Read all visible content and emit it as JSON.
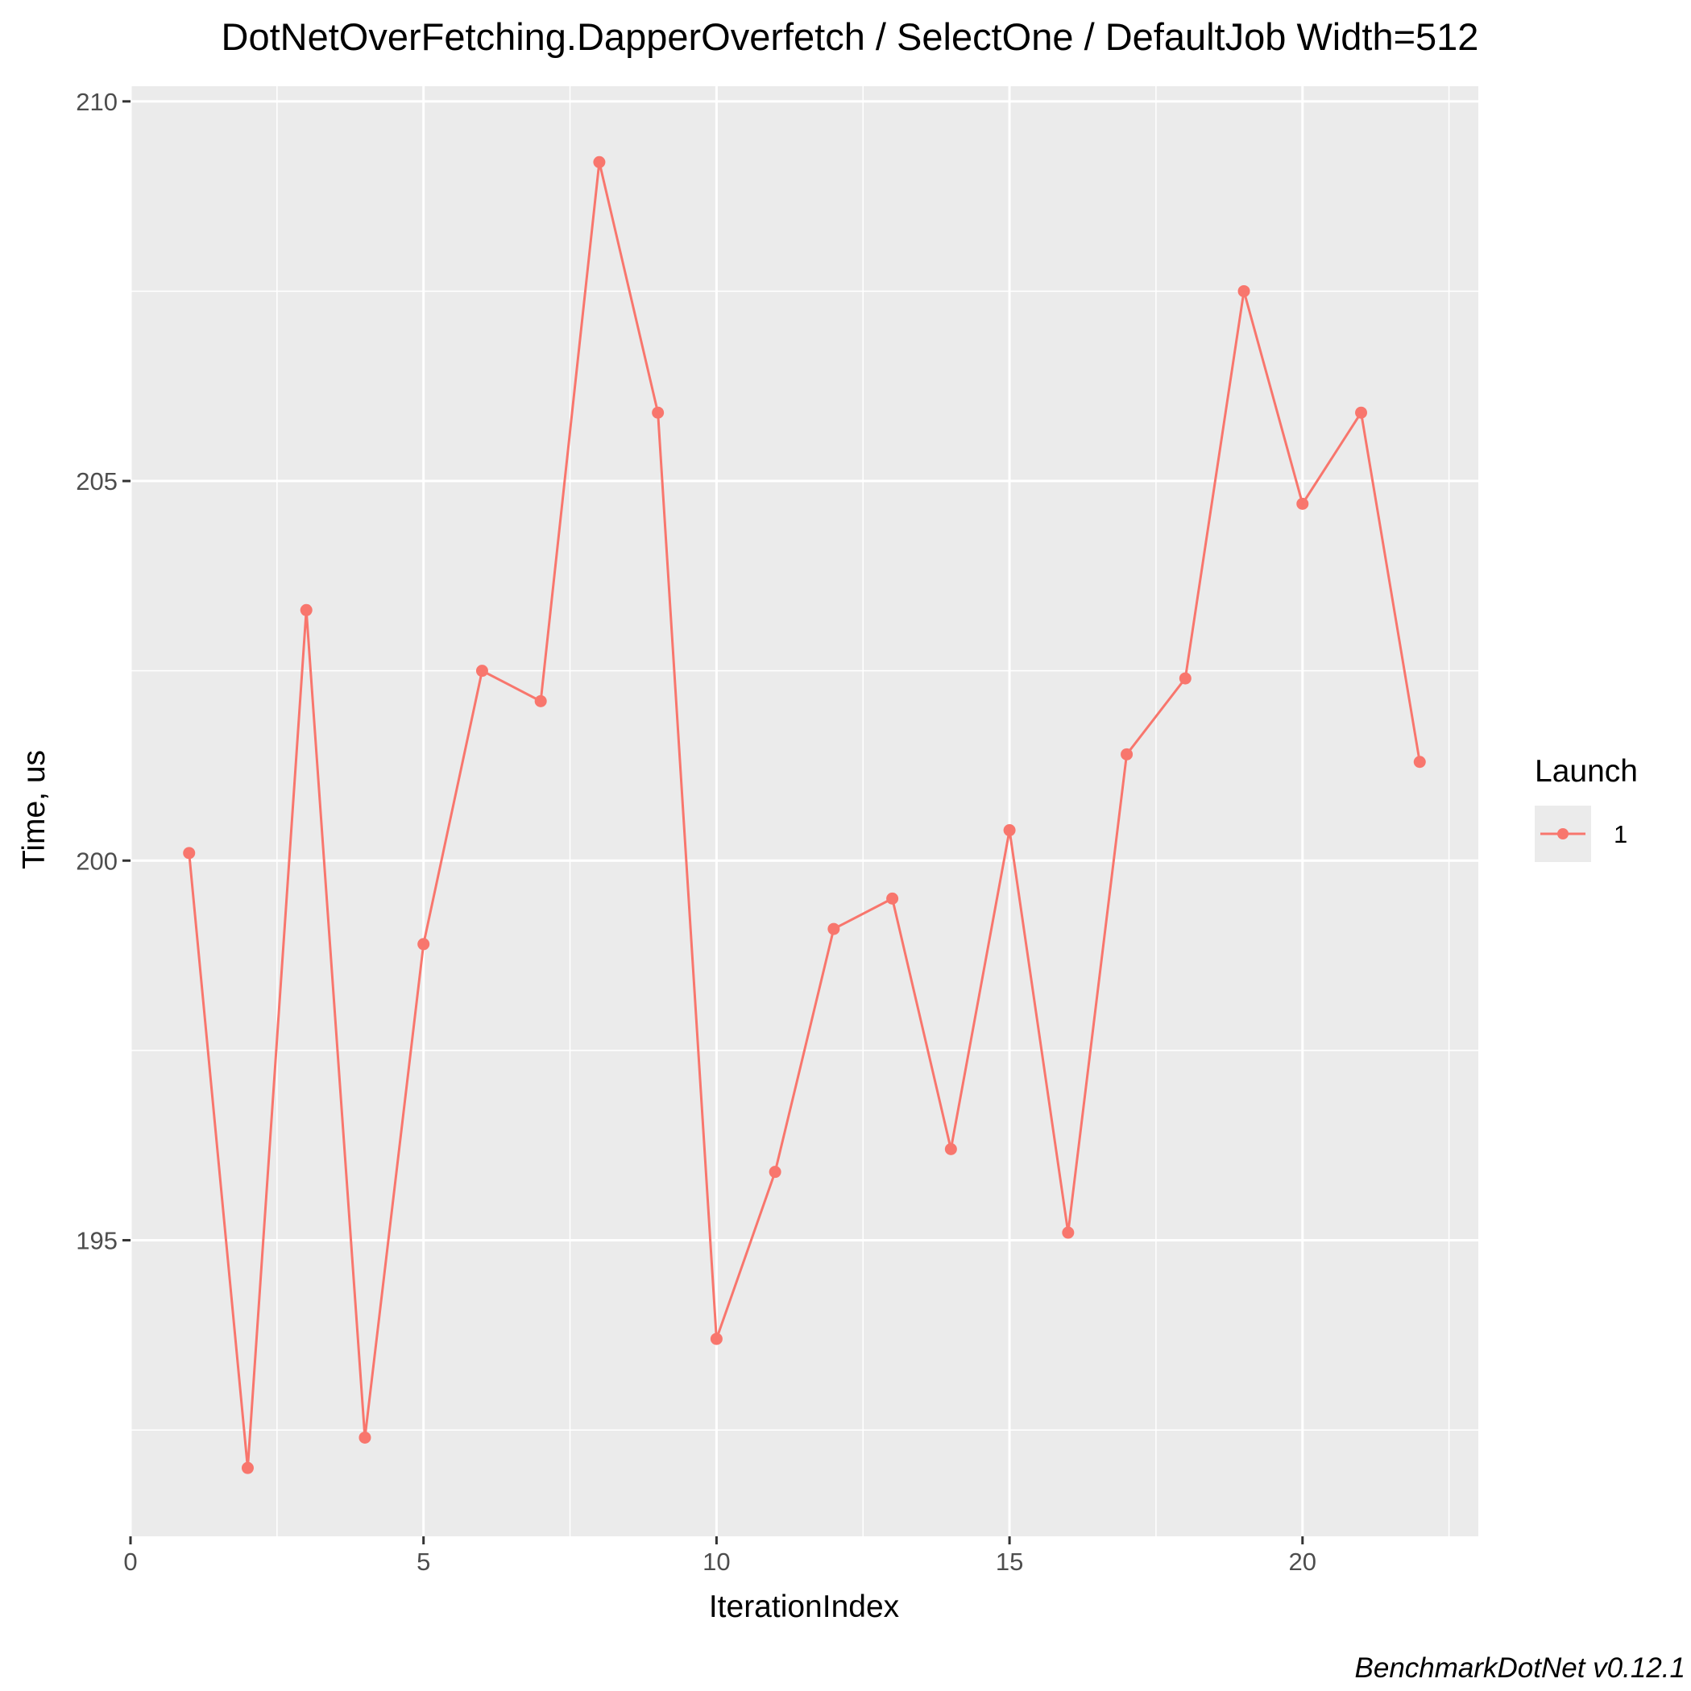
{
  "chart_data": {
    "type": "line",
    "title": "DotNetOverFetching.DapperOverfetch / SelectOne / DefaultJob Width=512",
    "xlabel": "IterationIndex",
    "ylabel": "Time, us",
    "xlim": [
      0,
      23
    ],
    "ylim": [
      191.1,
      210.2
    ],
    "x_ticks": [
      0,
      5,
      10,
      15,
      20
    ],
    "y_ticks": [
      195,
      200,
      205,
      210
    ],
    "grid": true,
    "legend": {
      "title": "Launch",
      "position": "right"
    },
    "caption": "BenchmarkDotNet v0.12.1",
    "series": [
      {
        "name": "1",
        "color": "#F8766D",
        "x": [
          1,
          2,
          3,
          4,
          5,
          6,
          7,
          8,
          9,
          10,
          11,
          12,
          13,
          14,
          15,
          16,
          17,
          18,
          19,
          20,
          21,
          22
        ],
        "y": [
          200.1,
          192.0,
          203.3,
          192.4,
          198.9,
          202.5,
          202.1,
          209.2,
          205.9,
          193.7,
          195.9,
          199.1,
          199.5,
          196.2,
          200.4,
          195.1,
          201.4,
          202.4,
          207.5,
          204.7,
          205.9,
          201.3
        ]
      }
    ]
  }
}
